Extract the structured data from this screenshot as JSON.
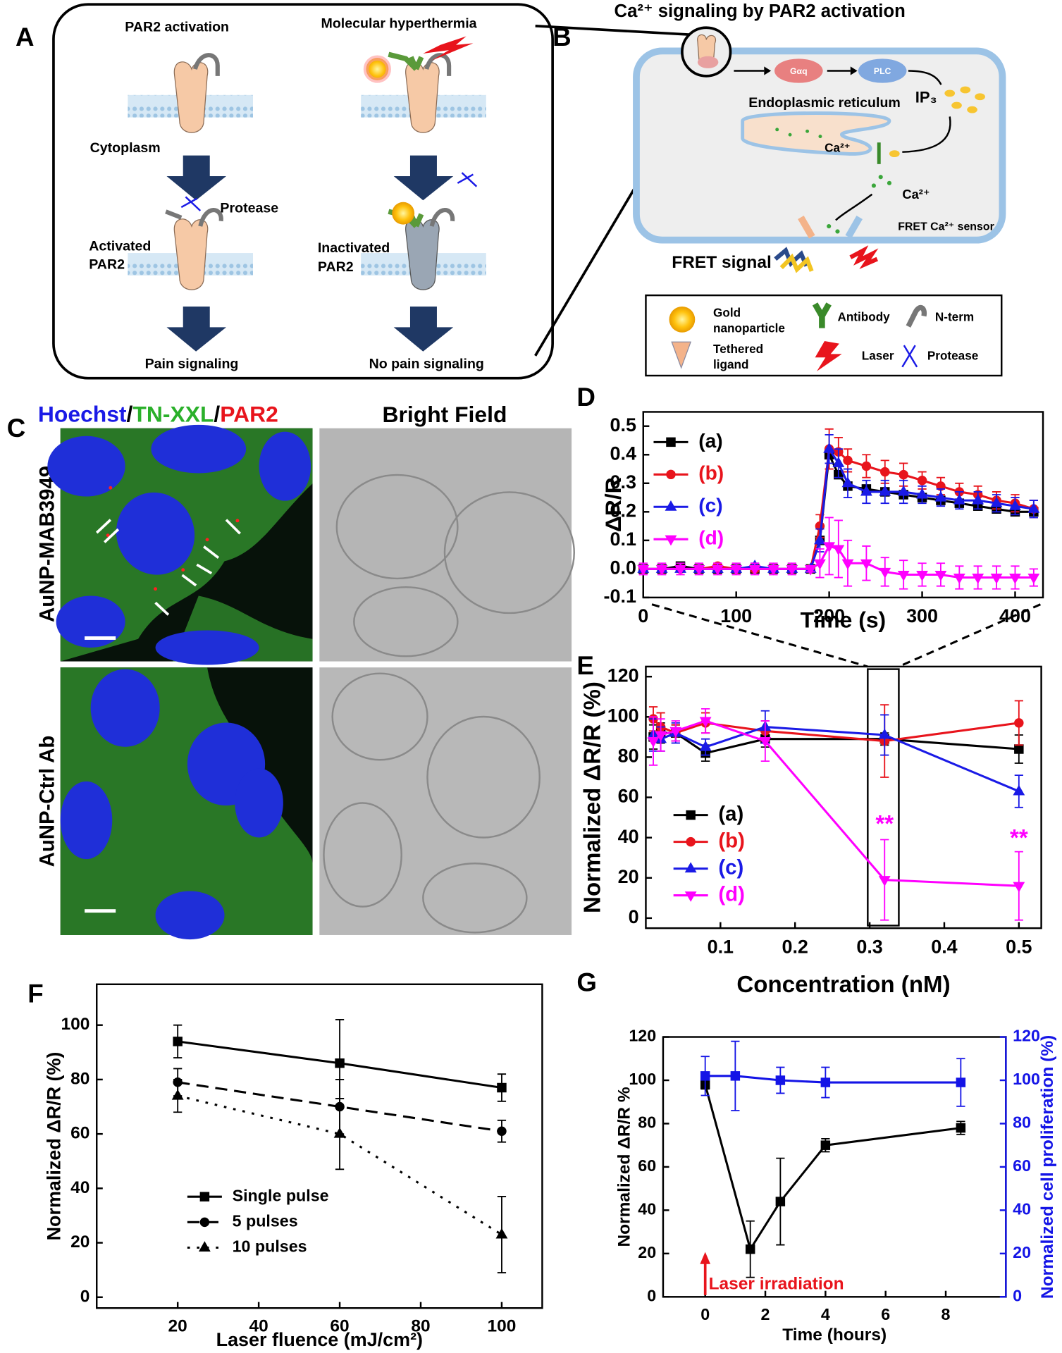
{
  "panel_labels": [
    "A",
    "B",
    "C",
    "D",
    "E",
    "F",
    "G"
  ],
  "panel_a": {
    "left_title": "PAR2 activation",
    "right_title": "Molecular hyperthermia",
    "cytoplasm": "Cytoplasm",
    "protease": "Protease",
    "activated": [
      "Activated",
      "PAR2"
    ],
    "inactivated": [
      "Inactivated",
      "PAR2"
    ],
    "left_outcome": "Pain signaling",
    "right_outcome": "No pain signaling"
  },
  "panel_b": {
    "title": "Ca²⁺ signaling by PAR2 activation",
    "g_protein": "Gαq",
    "plc": "PLC",
    "ip3": "IP₃",
    "er": "Endoplasmic reticulum",
    "ca_er": "Ca²⁺",
    "ca_cyto": "Ca²⁺",
    "sensor": "FRET Ca²⁺ sensor",
    "fret": "FRET signal",
    "legend": {
      "gold": [
        "Gold",
        "nanoparticle"
      ],
      "antibody": "Antibody",
      "nterm": "N-term",
      "ligand": [
        "Tethered",
        "ligand"
      ],
      "laser": "Laser",
      "protease": "Protease"
    }
  },
  "panel_c": {
    "header": [
      "Hoechst",
      "/",
      "TN-XXL",
      "/",
      "PAR2"
    ],
    "bright_field": "Bright Field",
    "rows": [
      "AuNP-MAB3949",
      "AuNP-Ctrl Ab"
    ]
  },
  "chart_data": [
    {
      "type": "line",
      "xlabel": "Time (s)",
      "ylabel": "ΔR/R",
      "xlim": [
        0,
        430
      ],
      "ylim": [
        -0.1,
        0.55
      ],
      "xticks": [
        0,
        100,
        200,
        300,
        400
      ],
      "yticks": [
        -0.1,
        {
          "value": 0,
          "label": "0.0"
        },
        0.1,
        0.2,
        0.3,
        0.4,
        0.5
      ],
      "legend": "upper left",
      "x": [
        0,
        20,
        40,
        60,
        80,
        100,
        120,
        140,
        160,
        180,
        190,
        200,
        210,
        220,
        240,
        260,
        280,
        300,
        320,
        340,
        360,
        380,
        400,
        420
      ],
      "series": [
        {
          "name": "(a)",
          "color": "#000000",
          "marker": "square",
          "dash": "solid",
          "values": [
            0,
            0,
            0.01,
            0,
            0,
            0,
            0,
            0,
            0,
            0,
            0.1,
            0.4,
            0.33,
            0.29,
            0.28,
            0.27,
            0.26,
            0.25,
            0.24,
            0.23,
            0.22,
            0.21,
            0.2,
            0.2
          ]
        },
        {
          "name": "(b)",
          "color": "#e8141c",
          "marker": "circle",
          "dash": "solid",
          "values": [
            0,
            0,
            0,
            0,
            0.01,
            0,
            0,
            0,
            0,
            0,
            0.15,
            0.42,
            0.41,
            0.38,
            0.36,
            0.34,
            0.33,
            0.31,
            0.29,
            0.27,
            0.26,
            0.24,
            0.23,
            0.21
          ],
          "errors": [
            0.01,
            0.01,
            0.01,
            0.01,
            0.01,
            0.01,
            0.01,
            0.01,
            0.01,
            0.01,
            0.04,
            0.07,
            0.05,
            0.04,
            0.04,
            0.04,
            0.04,
            0.03,
            0.03,
            0.03,
            0.03,
            0.03,
            0.03,
            0.03
          ]
        },
        {
          "name": "(c)",
          "color": "#1a1ae6",
          "marker": "triangle-up",
          "dash": "solid",
          "values": [
            0,
            0,
            0,
            0,
            0,
            0,
            0.01,
            0,
            0,
            0,
            0.1,
            0.42,
            0.37,
            0.3,
            0.27,
            0.27,
            0.27,
            0.26,
            0.25,
            0.24,
            0.24,
            0.23,
            0.22,
            0.21
          ],
          "errors": [
            0.01,
            0.01,
            0.01,
            0.01,
            0.01,
            0.01,
            0.01,
            0.01,
            0.01,
            0.01,
            0.04,
            0.05,
            0.05,
            0.05,
            0.04,
            0.04,
            0.04,
            0.03,
            0.03,
            0.03,
            0.03,
            0.03,
            0.03,
            0.03
          ]
        },
        {
          "name": "(d)",
          "color": "#ff00ff",
          "marker": "triangle-down",
          "dash": "solid",
          "values": [
            0,
            0,
            0,
            0,
            0,
            0,
            0,
            0,
            0,
            0,
            0.02,
            0.08,
            0.07,
            0.02,
            0.02,
            -0.01,
            -0.02,
            -0.02,
            -0.02,
            -0.03,
            -0.03,
            -0.03,
            -0.03,
            -0.03
          ],
          "errors": [
            0.02,
            0.02,
            0.02,
            0.02,
            0.02,
            0.02,
            0.02,
            0.02,
            0.02,
            0.01,
            0.05,
            0.1,
            0.1,
            0.08,
            0.06,
            0.05,
            0.05,
            0.04,
            0.04,
            0.04,
            0.04,
            0.04,
            0.04,
            0.03
          ]
        }
      ]
    },
    {
      "type": "line",
      "xlabel": "Concentration (nM)",
      "ylabel": "Normalized ΔR/R (%)",
      "xlim": [
        0,
        0.53
      ],
      "ylim": [
        -5,
        125
      ],
      "xticks": [
        0.1,
        0.2,
        0.3,
        0.4,
        0.5
      ],
      "yticks": [
        0,
        20,
        40,
        60,
        80,
        100,
        120
      ],
      "legend": "lower left",
      "x": [
        0.01,
        0.02,
        0.04,
        0.08,
        0.16,
        0.32,
        0.5
      ],
      "series": [
        {
          "name": "(a)",
          "color": "#000000",
          "marker": "square",
          "dash": "solid",
          "values": [
            90,
            92,
            92,
            82,
            89,
            89,
            84
          ],
          "errors": [
            6,
            5,
            4,
            4,
            4,
            3,
            7
          ]
        },
        {
          "name": "(b)",
          "color": "#e8141c",
          "marker": "circle",
          "dash": "solid",
          "values": [
            99,
            95,
            92,
            97,
            93,
            88,
            97
          ],
          "errors": [
            6,
            7,
            4,
            5,
            5,
            18,
            11
          ]
        },
        {
          "name": "(c)",
          "color": "#1a1ae6",
          "marker": "triangle-up",
          "dash": "solid",
          "values": [
            91,
            89,
            92,
            85,
            95,
            91,
            63
          ],
          "errors": [
            8,
            6,
            5,
            4,
            8,
            10,
            8
          ]
        },
        {
          "name": "(d)",
          "color": "#ff00ff",
          "marker": "triangle-down",
          "dash": "solid",
          "values": [
            88,
            91,
            93,
            98,
            88,
            19,
            16
          ],
          "errors": [
            12,
            8,
            5,
            6,
            10,
            20,
            17
          ]
        }
      ],
      "annotations": [
        {
          "text": "**",
          "x": 0.32,
          "y": 46,
          "color": "#ff00ff"
        },
        {
          "text": "**",
          "x": 0.5,
          "y": 39,
          "color": "#ff00ff"
        }
      ]
    },
    {
      "type": "line",
      "xlabel": "Laser fluence (mJ/cm²)",
      "ylabel": "Normalized ΔR/R (%)",
      "xlim": [
        0,
        110
      ],
      "ylim": [
        -4,
        115
      ],
      "xticks": [
        20,
        40,
        60,
        80,
        100
      ],
      "yticks": [
        0,
        20,
        40,
        60,
        80,
        100
      ],
      "legend": "lower left",
      "x": [
        20,
        60,
        100
      ],
      "series": [
        {
          "name": "Single pulse",
          "color": "#000000",
          "marker": "square",
          "dash": "solid",
          "values": [
            94,
            86,
            77
          ],
          "errors": [
            6,
            16,
            5
          ]
        },
        {
          "name": "5 pulses",
          "color": "#000000",
          "marker": "circle",
          "dash": "dashed",
          "values": [
            79,
            70,
            61
          ],
          "errors": [
            5,
            10,
            4
          ]
        },
        {
          "name": "10 pulses",
          "color": "#000000",
          "marker": "triangle-up",
          "dash": "dotted",
          "values": [
            74,
            60,
            23
          ],
          "errors": [
            6,
            13,
            14
          ]
        }
      ]
    },
    {
      "type": "line",
      "xlabel": "Time (hours)",
      "ylabel": "Normalized ΔR/R %",
      "y2label": "Normalized cell proliferation (%)",
      "xlim": [
        -1.4,
        10
      ],
      "ylim": [
        0,
        120
      ],
      "y2lim": [
        0,
        120
      ],
      "xticks": [
        0,
        2,
        4,
        6,
        8
      ],
      "yticks": [
        0,
        20,
        40,
        60,
        80,
        100,
        120
      ],
      "y2ticks": [
        0,
        20,
        40,
        60,
        80,
        100,
        120
      ],
      "series": [
        {
          "color": "#000000",
          "marker": "square",
          "dash": "solid",
          "x": [
            0,
            1.5,
            2.5,
            4,
            8.5
          ],
          "values": [
            98,
            22,
            44,
            70,
            78
          ],
          "errors": [
            2,
            13,
            20,
            3,
            3
          ]
        },
        {
          "color": "#1414e6",
          "marker": "square",
          "dash": "solid",
          "axis": "y2",
          "x": [
            0,
            1,
            2.5,
            4,
            8.5
          ],
          "values": [
            102,
            102,
            100,
            99,
            99
          ],
          "errors": [
            9,
            16,
            6,
            7,
            11
          ]
        }
      ],
      "annotations": [
        {
          "text": "Laser irradiation",
          "x": 0,
          "color": "#e8141c",
          "arrow": true
        }
      ]
    }
  ]
}
